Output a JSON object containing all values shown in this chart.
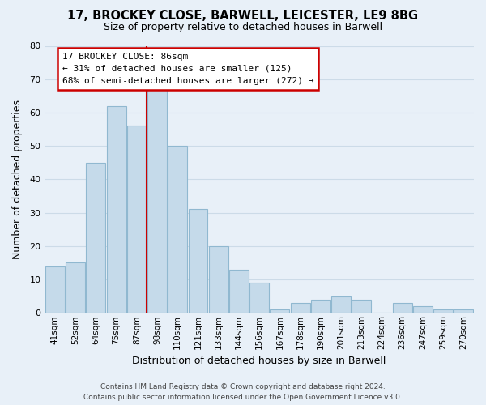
{
  "title": "17, BROCKEY CLOSE, BARWELL, LEICESTER, LE9 8BG",
  "subtitle": "Size of property relative to detached houses in Barwell",
  "xlabel": "Distribution of detached houses by size in Barwell",
  "ylabel": "Number of detached properties",
  "bar_labels": [
    "41sqm",
    "52sqm",
    "64sqm",
    "75sqm",
    "87sqm",
    "98sqm",
    "110sqm",
    "121sqm",
    "133sqm",
    "144sqm",
    "156sqm",
    "167sqm",
    "178sqm",
    "190sqm",
    "201sqm",
    "213sqm",
    "224sqm",
    "236sqm",
    "247sqm",
    "259sqm",
    "270sqm"
  ],
  "bar_values": [
    14,
    15,
    45,
    62,
    56,
    67,
    50,
    31,
    20,
    13,
    9,
    1,
    3,
    4,
    5,
    4,
    0,
    3,
    2,
    1,
    1
  ],
  "bar_color": "#c5daea",
  "bar_edge_color": "#90b8d0",
  "vline_x": 4.5,
  "vline_color": "#cc0000",
  "ylim": [
    0,
    80
  ],
  "yticks": [
    0,
    10,
    20,
    30,
    40,
    50,
    60,
    70,
    80
  ],
  "annotation_title": "17 BROCKEY CLOSE: 86sqm",
  "annotation_line1": "← 31% of detached houses are smaller (125)",
  "annotation_line2": "68% of semi-detached houses are larger (272) →",
  "annotation_box_color": "#ffffff",
  "annotation_box_edge": "#cc0000",
  "footer_line1": "Contains HM Land Registry data © Crown copyright and database right 2024.",
  "footer_line2": "Contains public sector information licensed under the Open Government Licence v3.0.",
  "grid_color": "#ccdbe8",
  "background_color": "#e8f0f8"
}
